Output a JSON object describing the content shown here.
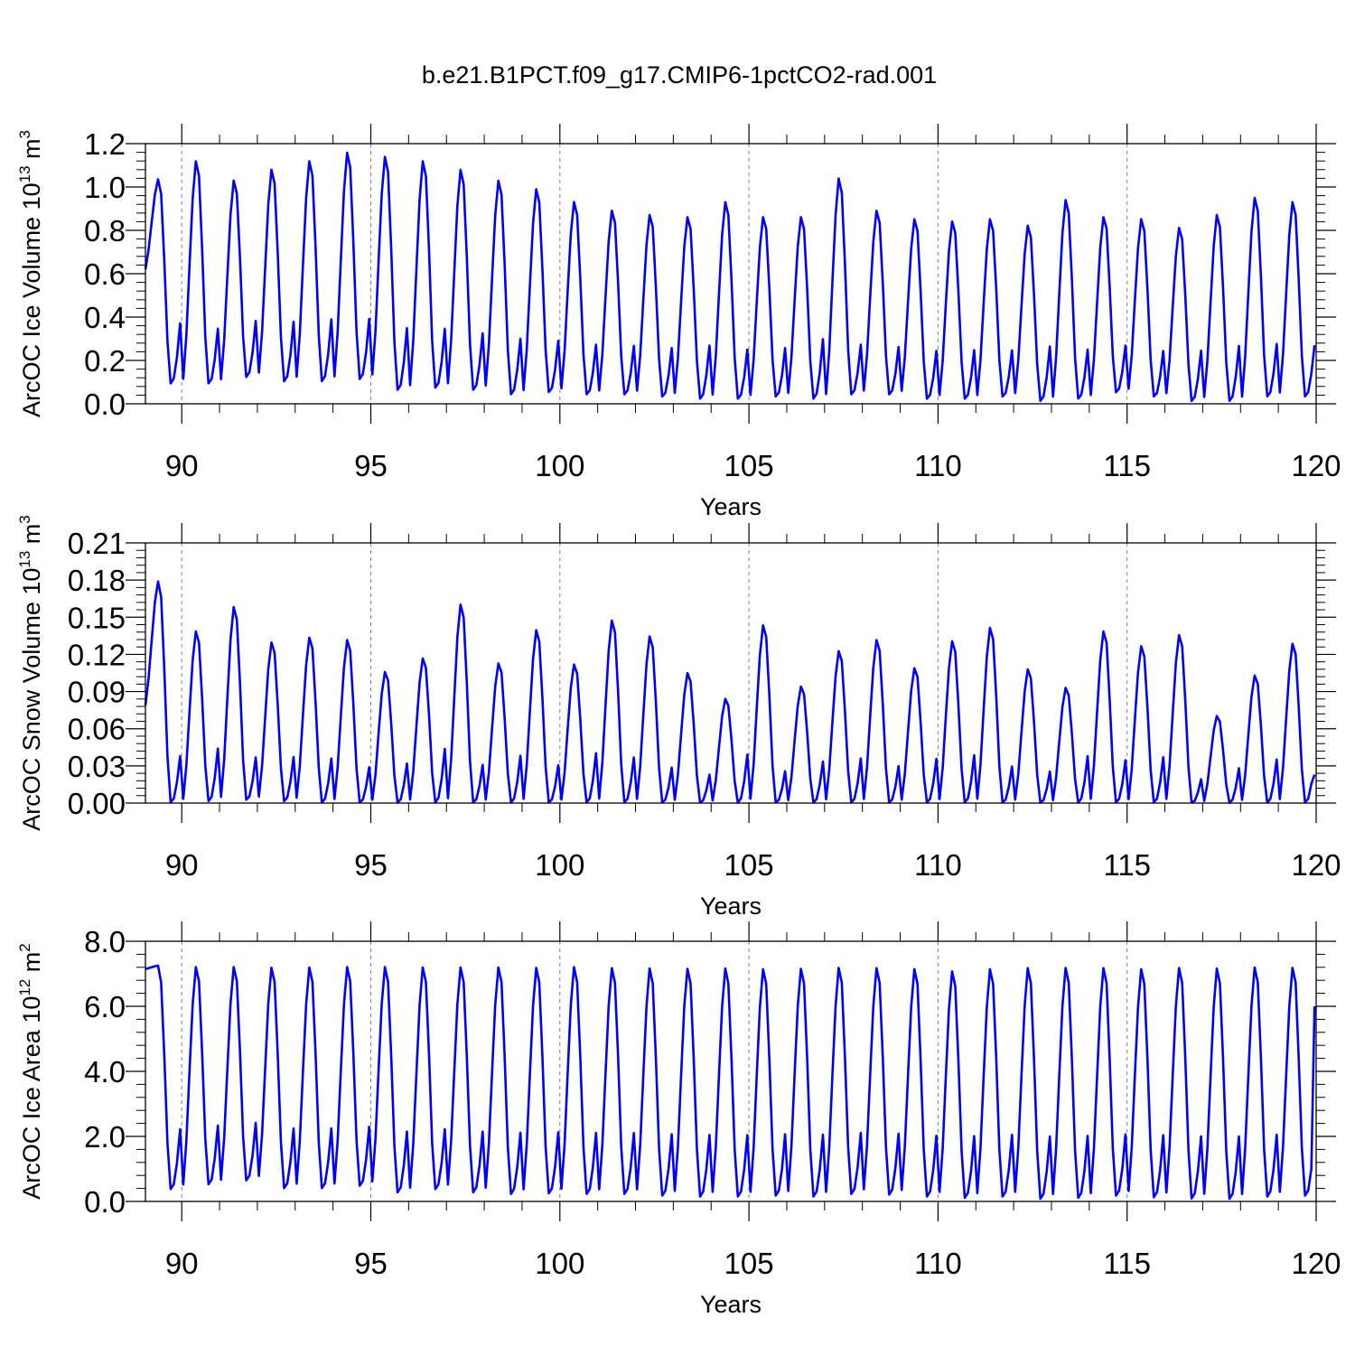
{
  "title": "b.e21.B1PCT.f09_g17.CMIP6-1pctCO2-rad.001",
  "chart_data": [
    {
      "type": "line",
      "ylabel": {
        "pre": "ArcOC Ice Volume 10",
        "sup": "13",
        "mid": " m",
        "sup2": "3"
      },
      "xlabel": "Years",
      "xlim": [
        89.04,
        120.0
      ],
      "ylim": [
        0.0,
        1.2
      ],
      "x_ticks": [
        90,
        95,
        100,
        105,
        110,
        115,
        120
      ],
      "x_tick_labels": [
        "90",
        "95",
        "100",
        "105",
        "110",
        "115",
        "120"
      ],
      "y_ticks": [
        0.0,
        0.2,
        0.4,
        0.6,
        0.8,
        1.0,
        1.2
      ],
      "y_tick_labels": [
        "0.0",
        "0.2",
        "0.4",
        "0.6",
        "0.8",
        "1.0",
        "1.2"
      ],
      "vgrid_dashed": [
        90,
        95,
        100,
        105,
        110,
        115
      ],
      "line_color": "#0000ff",
      "start_value": 0.62,
      "end_value": 0.27,
      "yearly": {
        "start_year": 89,
        "max": [
          1.04,
          1.13,
          1.04,
          1.09,
          1.13,
          1.17,
          1.15,
          1.13,
          1.09,
          1.04,
          1.0,
          0.94,
          0.9,
          0.88,
          0.87,
          0.94,
          0.87,
          0.87,
          1.05,
          0.9,
          0.86,
          0.85,
          0.86,
          0.83,
          0.95,
          0.87,
          0.86,
          0.82,
          0.88,
          0.96,
          0.94
        ],
        "min": [
          0.09,
          0.09,
          0.12,
          0.1,
          0.1,
          0.11,
          0.06,
          0.07,
          0.06,
          0.04,
          0.05,
          0.04,
          0.04,
          0.03,
          0.02,
          0.02,
          0.03,
          0.02,
          0.04,
          0.04,
          0.02,
          0.02,
          0.03,
          0.01,
          0.02,
          0.05,
          0.03,
          0.01,
          0.01,
          0.03,
          0.03
        ]
      }
    },
    {
      "type": "line",
      "ylabel": {
        "pre": "ArcOC Snow Volume 10",
        "sup": "13",
        "mid": " m",
        "sup2": "3"
      },
      "xlabel": "Years",
      "xlim": [
        89.04,
        120.0
      ],
      "ylim": [
        0.0,
        0.21
      ],
      "x_ticks": [
        90,
        95,
        100,
        105,
        110,
        115,
        120
      ],
      "x_tick_labels": [
        "90",
        "95",
        "100",
        "105",
        "110",
        "115",
        "120"
      ],
      "y_ticks": [
        0.0,
        0.03,
        0.06,
        0.09,
        0.12,
        0.15,
        0.18,
        0.21
      ],
      "y_tick_labels": [
        "0.00",
        "0.03",
        "0.06",
        "0.09",
        "0.12",
        "0.15",
        "0.18",
        "0.21"
      ],
      "vgrid_dashed": [
        90,
        95,
        100,
        105,
        110,
        115
      ],
      "line_color": "#0000ff",
      "start_value": 0.079,
      "end_value": 0.023,
      "yearly": {
        "start_year": 89,
        "max": [
          0.18,
          0.14,
          0.16,
          0.131,
          0.135,
          0.133,
          0.107,
          0.118,
          0.162,
          0.114,
          0.141,
          0.113,
          0.149,
          0.136,
          0.106,
          0.085,
          0.145,
          0.095,
          0.124,
          0.133,
          0.11,
          0.132,
          0.143,
          0.109,
          0.094,
          0.14,
          0.128,
          0.137,
          0.071,
          0.104,
          0.13
        ],
        "min": [
          0.0,
          0.001,
          0.002,
          0.001,
          0.0,
          0.0,
          0.0,
          0.0,
          0.0,
          0.0,
          0.0,
          0.0,
          0.0,
          0.0,
          0.0,
          0.0,
          0.0,
          0.0,
          0.0,
          0.0,
          0.0,
          0.0,
          0.0,
          0.0,
          0.0,
          0.0,
          0.0,
          0.0,
          0.0,
          0.0,
          0.0
        ]
      }
    },
    {
      "type": "line",
      "ylabel": {
        "pre": "ArcOC Ice Area 10",
        "sup": "12",
        "mid": " m",
        "sup2": "2"
      },
      "xlabel": "Years",
      "xlim": [
        89.04,
        120.0
      ],
      "ylim": [
        0.0,
        8.0
      ],
      "x_ticks": [
        90,
        95,
        100,
        105,
        110,
        115,
        120
      ],
      "x_tick_labels": [
        "90",
        "95",
        "100",
        "105",
        "110",
        "115",
        "120"
      ],
      "y_ticks": [
        0.0,
        2.0,
        4.0,
        6.0,
        8.0
      ],
      "y_tick_labels": [
        "0.0",
        "2.0",
        "4.0",
        "6.0",
        "8.0"
      ],
      "vgrid_dashed": [
        90,
        95,
        100,
        105,
        110,
        115
      ],
      "line_color": "#0000ff",
      "start_value": 7.15,
      "end_value": 6.0,
      "yearly": {
        "start_year": 89,
        "max": [
          7.25,
          7.28,
          7.28,
          7.26,
          7.27,
          7.28,
          7.28,
          7.27,
          7.27,
          7.27,
          7.26,
          7.28,
          7.25,
          7.24,
          7.23,
          7.24,
          7.22,
          7.23,
          7.26,
          7.25,
          7.22,
          7.15,
          7.22,
          7.25,
          7.26,
          7.25,
          7.22,
          7.26,
          7.24,
          7.27,
          7.26
        ],
        "min": [
          0.35,
          0.5,
          0.62,
          0.38,
          0.38,
          0.45,
          0.25,
          0.35,
          0.25,
          0.2,
          0.22,
          0.2,
          0.2,
          0.15,
          0.12,
          0.12,
          0.15,
          0.12,
          0.2,
          0.18,
          0.12,
          0.08,
          0.12,
          0.05,
          0.08,
          0.15,
          0.1,
          0.06,
          0.05,
          0.12,
          0.15
        ]
      }
    }
  ]
}
